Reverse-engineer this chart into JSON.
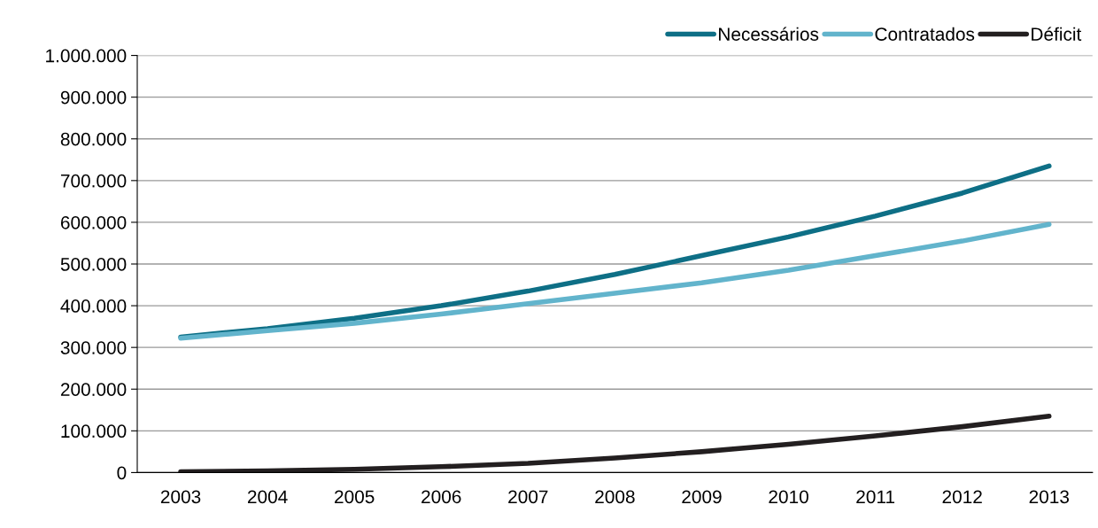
{
  "chart_data": {
    "type": "line",
    "categories": [
      "2003",
      "2004",
      "2005",
      "2006",
      "2007",
      "2008",
      "2009",
      "2010",
      "2011",
      "2012",
      "2013"
    ],
    "series": [
      {
        "name": "Necessários",
        "color": "#0e6f86",
        "values": [
          325000,
          345000,
          370000,
          400000,
          435000,
          475000,
          520000,
          565000,
          615000,
          670000,
          735000
        ]
      },
      {
        "name": "Contratados",
        "color": "#62b4cc",
        "values": [
          322000,
          340000,
          358000,
          380000,
          405000,
          430000,
          455000,
          485000,
          520000,
          555000,
          595000
        ]
      },
      {
        "name": "Déficit",
        "color": "#231f20",
        "values": [
          2000,
          4000,
          8000,
          14000,
          22000,
          35000,
          50000,
          68000,
          88000,
          110000,
          135000
        ]
      }
    ],
    "ylim": [
      0,
      1000000
    ],
    "yticks": [
      0,
      {
        "value": 100000,
        "label": "100.000"
      },
      {
        "value": 200000,
        "label": "200.000"
      },
      {
        "value": 300000,
        "label": "300.000"
      },
      {
        "value": 400000,
        "label": "400.000"
      },
      {
        "value": 500000,
        "label": "500.000"
      },
      {
        "value": 600000,
        "label": "600.000"
      },
      {
        "value": 700000,
        "label": "700.000"
      },
      {
        "value": 800000,
        "label": "800.000"
      },
      {
        "value": 900000,
        "label": "900.000"
      },
      {
        "value": 1000000,
        "label": "1.000.000"
      }
    ],
    "grid": "y",
    "legend": "top right",
    "marker": "none",
    "line_style": "solid"
  }
}
